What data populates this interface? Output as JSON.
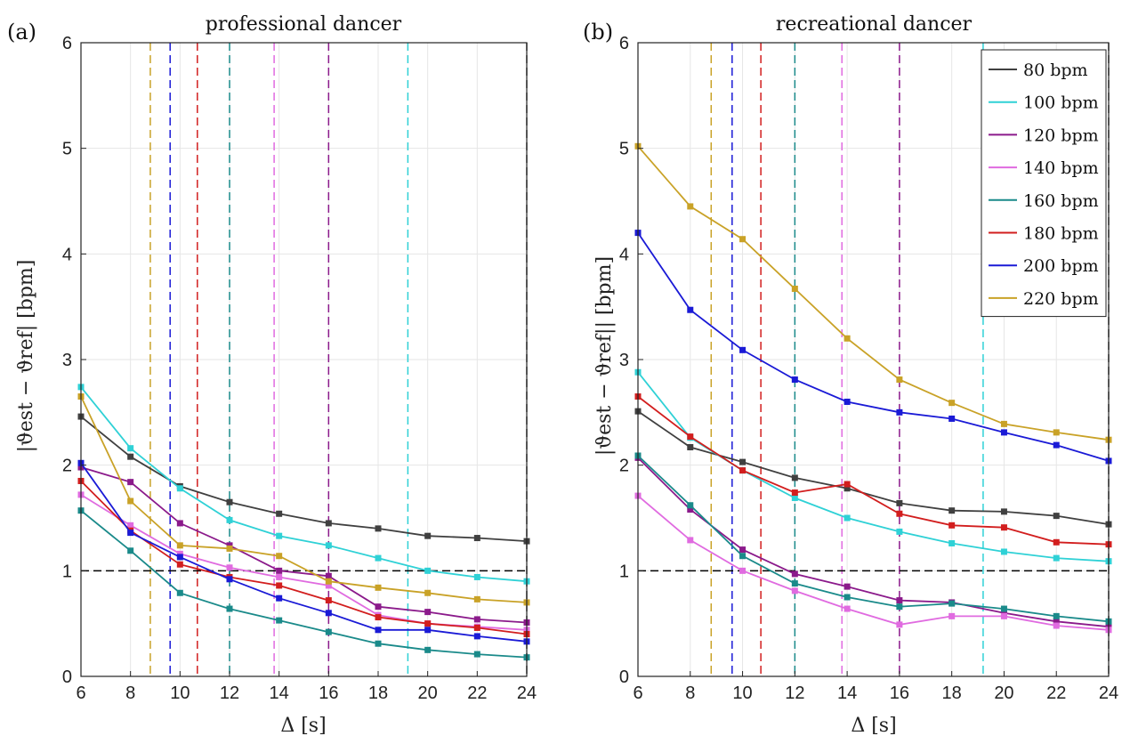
{
  "panels": [
    {
      "label": "(a)",
      "title": "professional dancer",
      "xlabel": "Δ [s]",
      "ylabel": "|ϑest − ϑref| [bpm]"
    },
    {
      "label": "(b)",
      "title": "recreational dancer",
      "xlabel": "Δ [s]",
      "ylabel": "|ϑest − ϑref|| [bpm]"
    }
  ],
  "chart_data": [
    {
      "type": "line",
      "title": "professional dancer",
      "xlabel": "Δ [s]",
      "ylabel": "|ϑest − ϑref| [bpm]",
      "x": [
        6,
        8,
        10,
        12,
        14,
        16,
        18,
        20,
        22,
        24
      ],
      "xlim": [
        6,
        24
      ],
      "ylim": [
        0,
        6
      ],
      "xticks": [
        6,
        8,
        10,
        12,
        14,
        16,
        18,
        20,
        22,
        24
      ],
      "yticks": [
        0,
        1,
        2,
        3,
        4,
        5,
        6
      ],
      "grid": true,
      "legend": false,
      "series": [
        {
          "name": "80 bpm",
          "color": "#404040",
          "values": [
            2.46,
            2.08,
            1.8,
            1.65,
            1.54,
            1.45,
            1.4,
            1.33,
            1.31,
            1.28
          ]
        },
        {
          "name": "100 bpm",
          "color": "#2fd1d6",
          "values": [
            2.74,
            2.16,
            1.78,
            1.48,
            1.33,
            1.24,
            1.12,
            1.0,
            0.94,
            0.9
          ]
        },
        {
          "name": "120 bpm",
          "color": "#8b1a8b",
          "values": [
            1.98,
            1.84,
            1.45,
            1.24,
            1.0,
            0.95,
            0.66,
            0.61,
            0.54,
            0.51
          ]
        },
        {
          "name": "140 bpm",
          "color": "#e06be0",
          "values": [
            1.72,
            1.43,
            1.16,
            1.03,
            0.94,
            0.86,
            0.58,
            0.5,
            0.47,
            0.44
          ]
        },
        {
          "name": "160 bpm",
          "color": "#1a8a8a",
          "values": [
            1.57,
            1.19,
            0.79,
            0.64,
            0.53,
            0.42,
            0.31,
            0.25,
            0.21,
            0.18
          ]
        },
        {
          "name": "180 bpm",
          "color": "#d21e1e",
          "values": [
            1.85,
            1.38,
            1.06,
            0.94,
            0.86,
            0.72,
            0.56,
            0.5,
            0.46,
            0.4
          ]
        },
        {
          "name": "200 bpm",
          "color": "#1a1ad6",
          "values": [
            2.02,
            1.36,
            1.13,
            0.92,
            0.74,
            0.6,
            0.44,
            0.44,
            0.38,
            0.33
          ]
        },
        {
          "name": "220 bpm",
          "color": "#c9a227",
          "values": [
            2.65,
            1.66,
            1.24,
            1.21,
            1.14,
            0.9,
            0.84,
            0.79,
            0.73,
            0.7
          ]
        }
      ],
      "reference_line": {
        "y": 1,
        "color": "#000000"
      },
      "vertical_lines": [
        {
          "x": 8.8,
          "color": "#c9a227"
        },
        {
          "x": 9.6,
          "color": "#1a1ad6"
        },
        {
          "x": 10.7,
          "color": "#d21e1e"
        },
        {
          "x": 12.0,
          "color": "#1a8a8a"
        },
        {
          "x": 13.8,
          "color": "#e06be0"
        },
        {
          "x": 16.0,
          "color": "#8b1a8b"
        },
        {
          "x": 19.2,
          "color": "#2fd1d6"
        },
        {
          "x": 24.0,
          "color": "#404040"
        }
      ]
    },
    {
      "type": "line",
      "title": "recreational dancer",
      "xlabel": "Δ [s]",
      "ylabel": "|ϑest − ϑref|| [bpm]",
      "x": [
        6,
        8,
        10,
        12,
        14,
        16,
        18,
        20,
        22,
        24
      ],
      "xlim": [
        6,
        24
      ],
      "ylim": [
        0,
        6
      ],
      "xticks": [
        6,
        8,
        10,
        12,
        14,
        16,
        18,
        20,
        22,
        24
      ],
      "yticks": [
        0,
        1,
        2,
        3,
        4,
        5,
        6
      ],
      "grid": true,
      "legend": true,
      "legend_position": "top-right",
      "series": [
        {
          "name": "80 bpm",
          "color": "#404040",
          "values": [
            2.51,
            2.17,
            2.03,
            1.88,
            1.78,
            1.64,
            1.57,
            1.56,
            1.52,
            1.44
          ]
        },
        {
          "name": "100 bpm",
          "color": "#2fd1d6",
          "values": [
            2.88,
            2.26,
            1.95,
            1.69,
            1.5,
            1.37,
            1.26,
            1.18,
            1.12,
            1.09
          ]
        },
        {
          "name": "120 bpm",
          "color": "#8b1a8b",
          "values": [
            2.07,
            1.58,
            1.2,
            0.97,
            0.85,
            0.72,
            0.7,
            0.6,
            0.52,
            0.47
          ]
        },
        {
          "name": "140 bpm",
          "color": "#e06be0",
          "values": [
            1.71,
            1.29,
            1.0,
            0.81,
            0.64,
            0.49,
            0.57,
            0.57,
            0.48,
            0.44
          ]
        },
        {
          "name": "160 bpm",
          "color": "#1a8a8a",
          "values": [
            2.09,
            1.62,
            1.14,
            0.88,
            0.75,
            0.66,
            0.69,
            0.64,
            0.57,
            0.52
          ]
        },
        {
          "name": "180 bpm",
          "color": "#d21e1e",
          "values": [
            2.65,
            2.27,
            1.95,
            1.74,
            1.82,
            1.54,
            1.43,
            1.41,
            1.27,
            1.25
          ]
        },
        {
          "name": "200 bpm",
          "color": "#1a1ad6",
          "values": [
            4.2,
            3.47,
            3.09,
            2.81,
            2.6,
            2.5,
            2.44,
            2.31,
            2.19,
            2.04
          ]
        },
        {
          "name": "220 bpm",
          "color": "#c9a227",
          "values": [
            5.02,
            4.45,
            4.14,
            3.67,
            3.2,
            2.81,
            2.59,
            2.39,
            2.31,
            2.24
          ]
        }
      ],
      "reference_line": {
        "y": 1,
        "color": "#000000"
      },
      "vertical_lines": [
        {
          "x": 8.8,
          "color": "#c9a227"
        },
        {
          "x": 9.6,
          "color": "#1a1ad6"
        },
        {
          "x": 10.7,
          "color": "#d21e1e"
        },
        {
          "x": 12.0,
          "color": "#1a8a8a"
        },
        {
          "x": 13.8,
          "color": "#e06be0"
        },
        {
          "x": 16.0,
          "color": "#8b1a8b"
        },
        {
          "x": 19.2,
          "color": "#2fd1d6"
        },
        {
          "x": 24.0,
          "color": "#404040"
        }
      ]
    }
  ]
}
